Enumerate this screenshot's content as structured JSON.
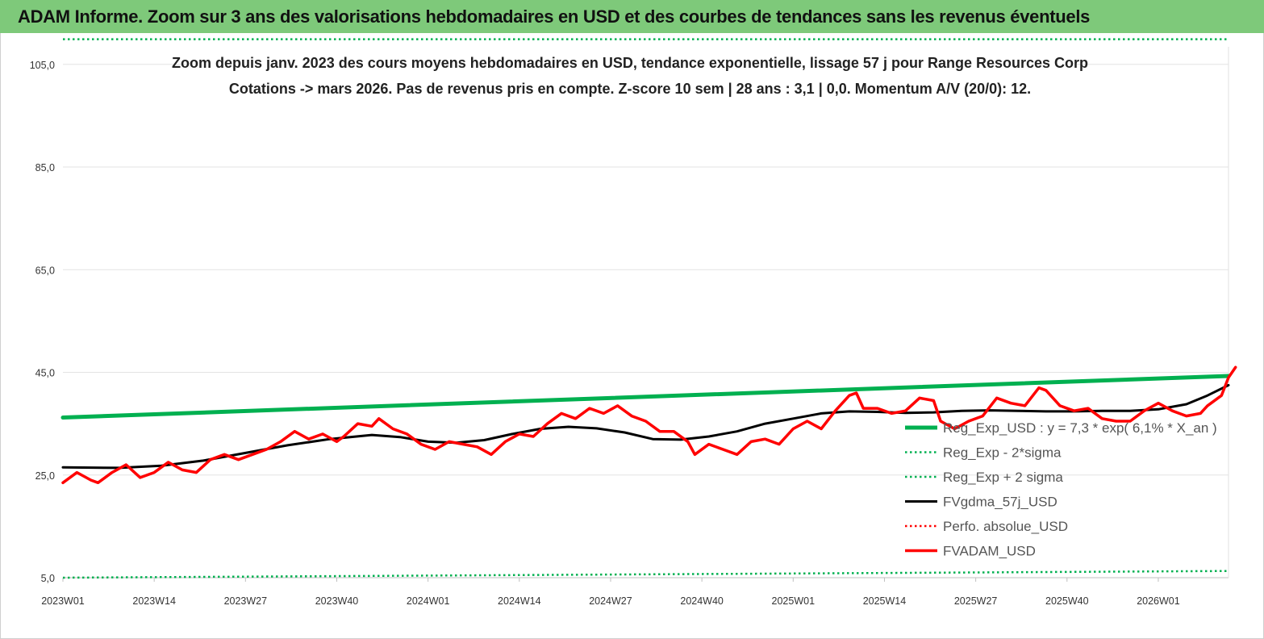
{
  "banner": {
    "title": "ADAM Informe. Zoom sur 3 ans des valorisations hebdomadaires en USD et des courbes de tendances sans les revenus éventuels"
  },
  "colors": {
    "banner_bg": "#7ec97a",
    "reg_exp": "#00b050",
    "sigma": "#00b050",
    "fvgdma": "#000000",
    "perfo": "#ff0000",
    "fvadam": "#ff0000"
  },
  "chart_data": {
    "type": "line",
    "title": [
      "Zoom depuis janv. 2023 des cours moyens hebdomadaires en USD, tendance exponentielle, lissage 57 j pour Range Resources Corp",
      "Cotations -> mars 2026. Pas de revenus pris en compte. Z-score 10 sem | 28 ans : 3,1 | 0,0. Momentum A/V (20/0): 12."
    ],
    "ylim": [
      5,
      110
    ],
    "y_ticks": [
      "5,0",
      "25,0",
      "45,0",
      "65,0",
      "85,0",
      "105,0"
    ],
    "y_tick_values": [
      5,
      25,
      45,
      65,
      85,
      105
    ],
    "x_ticks": [
      "2023W01",
      "2023W14",
      "2023W27",
      "2023W40",
      "2024W01",
      "2024W14",
      "2024W27",
      "2024W40",
      "2025W01",
      "2025W14",
      "2025W27",
      "2025W40",
      "2026W01"
    ],
    "x_tick_weeks": [
      0,
      13,
      26,
      39,
      52,
      65,
      78,
      91,
      104,
      117,
      130,
      143,
      156
    ],
    "x_range_weeks": [
      0,
      166
    ],
    "grid": "horizontal",
    "legend_position": "right",
    "series": [
      {
        "name": "Reg_Exp_USD : y = 7,3 * exp( 6,1% * X_an )",
        "style": "solid-thick",
        "color": "#00b050",
        "points": [
          [
            0,
            36.2
          ],
          [
            166,
            44.3
          ]
        ]
      },
      {
        "name": "Reg_Exp - 2*sigma",
        "style": "dotted",
        "color": "#00b050",
        "points": [
          [
            0,
            5.0
          ],
          [
            166,
            6.3
          ]
        ]
      },
      {
        "name": "Reg_Exp + 2 sigma",
        "style": "dotted",
        "color": "#00b050",
        "points": [
          [
            0,
            109.9
          ],
          [
            166,
            109.9
          ]
        ]
      },
      {
        "name": "FVgdma_57j_USD",
        "style": "solid",
        "color": "#000000",
        "points": [
          [
            0,
            26.5
          ],
          [
            8,
            26.4
          ],
          [
            14,
            26.8
          ],
          [
            20,
            27.8
          ],
          [
            26,
            29.3
          ],
          [
            32,
            30.8
          ],
          [
            38,
            32.0
          ],
          [
            44,
            32.8
          ],
          [
            48,
            32.4
          ],
          [
            52,
            31.5
          ],
          [
            56,
            31.3
          ],
          [
            60,
            31.8
          ],
          [
            64,
            33.0
          ],
          [
            68,
            34.0
          ],
          [
            72,
            34.4
          ],
          [
            76,
            34.1
          ],
          [
            80,
            33.3
          ],
          [
            84,
            32.0
          ],
          [
            88,
            31.9
          ],
          [
            92,
            32.5
          ],
          [
            96,
            33.5
          ],
          [
            100,
            35.0
          ],
          [
            104,
            36.0
          ],
          [
            108,
            37.0
          ],
          [
            112,
            37.4
          ],
          [
            116,
            37.3
          ],
          [
            120,
            37.1
          ],
          [
            124,
            37.2
          ],
          [
            128,
            37.5
          ],
          [
            132,
            37.6
          ],
          [
            136,
            37.5
          ],
          [
            140,
            37.4
          ],
          [
            144,
            37.4
          ],
          [
            148,
            37.5
          ],
          [
            152,
            37.5
          ],
          [
            156,
            37.8
          ],
          [
            160,
            38.8
          ],
          [
            163,
            40.5
          ],
          [
            166,
            42.5
          ]
        ]
      },
      {
        "name": "Perfo. absolue_USD",
        "style": "dotted",
        "color": "#ff0000",
        "points": []
      },
      {
        "name": "FVADAM_USD",
        "style": "solid-thick",
        "color": "#ff0000",
        "points": [
          [
            0,
            23.5
          ],
          [
            2,
            25.5
          ],
          [
            4,
            24.0
          ],
          [
            5,
            23.5
          ],
          [
            7,
            25.5
          ],
          [
            9,
            27.0
          ],
          [
            11,
            24.5
          ],
          [
            13,
            25.5
          ],
          [
            15,
            27.5
          ],
          [
            17,
            26.0
          ],
          [
            19,
            25.5
          ],
          [
            21,
            28.0
          ],
          [
            23,
            29.0
          ],
          [
            25,
            28.0
          ],
          [
            27,
            29.0
          ],
          [
            29,
            30.0
          ],
          [
            31,
            31.5
          ],
          [
            33,
            33.5
          ],
          [
            35,
            32.0
          ],
          [
            37,
            33.0
          ],
          [
            39,
            31.5
          ],
          [
            40,
            32.5
          ],
          [
            42,
            35.0
          ],
          [
            44,
            34.5
          ],
          [
            45,
            36.0
          ],
          [
            47,
            34.0
          ],
          [
            49,
            33.0
          ],
          [
            51,
            31.0
          ],
          [
            53,
            30.0
          ],
          [
            55,
            31.5
          ],
          [
            57,
            31.0
          ],
          [
            59,
            30.5
          ],
          [
            61,
            29.0
          ],
          [
            63,
            31.5
          ],
          [
            65,
            33.0
          ],
          [
            67,
            32.5
          ],
          [
            69,
            35.0
          ],
          [
            71,
            37.0
          ],
          [
            73,
            36.0
          ],
          [
            75,
            38.0
          ],
          [
            77,
            37.0
          ],
          [
            79,
            38.5
          ],
          [
            81,
            36.5
          ],
          [
            83,
            35.5
          ],
          [
            85,
            33.5
          ],
          [
            87,
            33.5
          ],
          [
            89,
            31.5
          ],
          [
            90,
            29.0
          ],
          [
            92,
            31.0
          ],
          [
            94,
            30.0
          ],
          [
            96,
            29.0
          ],
          [
            98,
            31.5
          ],
          [
            100,
            32.0
          ],
          [
            102,
            31.0
          ],
          [
            104,
            34.0
          ],
          [
            106,
            35.5
          ],
          [
            108,
            34.0
          ],
          [
            110,
            37.5
          ],
          [
            112,
            40.5
          ],
          [
            113,
            41.0
          ],
          [
            114,
            38.0
          ],
          [
            116,
            38.0
          ],
          [
            118,
            37.0
          ],
          [
            120,
            37.5
          ],
          [
            122,
            40.0
          ],
          [
            124,
            39.5
          ],
          [
            125,
            35.5
          ],
          [
            127,
            34.0
          ],
          [
            129,
            35.5
          ],
          [
            131,
            36.5
          ],
          [
            133,
            40.0
          ],
          [
            135,
            39.0
          ],
          [
            137,
            38.5
          ],
          [
            139,
            42.0
          ],
          [
            140,
            41.5
          ],
          [
            142,
            38.5
          ],
          [
            144,
            37.5
          ],
          [
            146,
            38.0
          ],
          [
            148,
            36.0
          ],
          [
            150,
            35.5
          ],
          [
            152,
            35.5
          ],
          [
            154,
            37.5
          ],
          [
            156,
            39.0
          ],
          [
            158,
            37.5
          ],
          [
            160,
            36.5
          ],
          [
            162,
            37.0
          ],
          [
            163,
            38.5
          ],
          [
            165,
            40.5
          ],
          [
            166,
            44.0
          ],
          [
            167,
            46.0
          ]
        ]
      }
    ]
  }
}
